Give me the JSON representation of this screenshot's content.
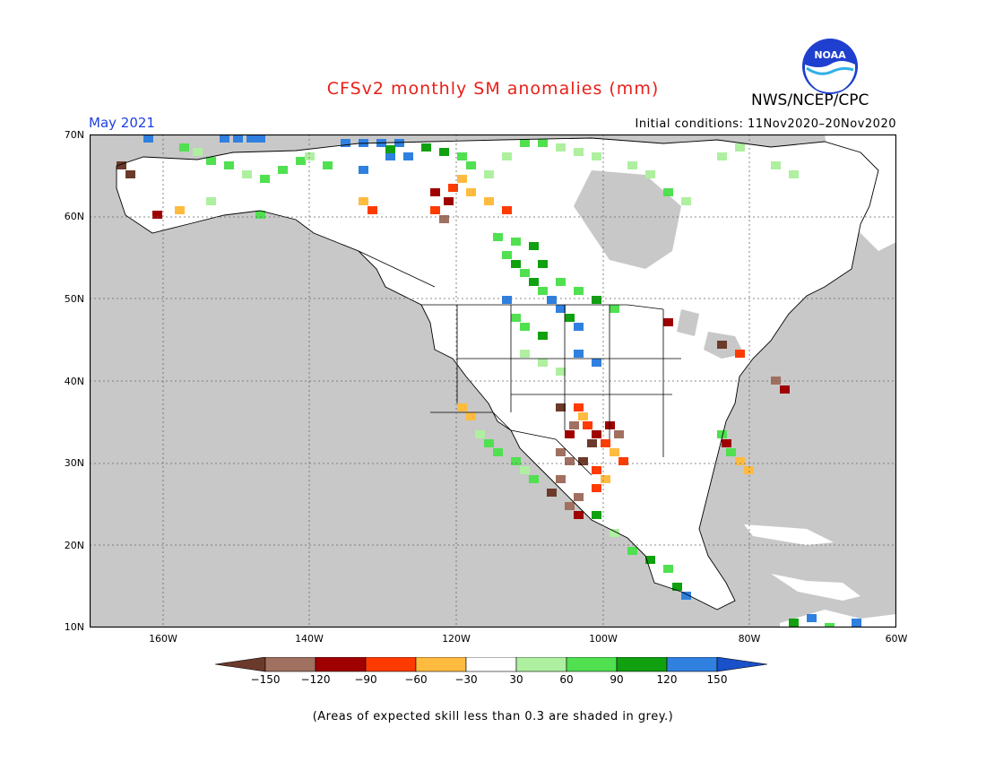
{
  "header": {
    "title": "CFSv2 monthly SM anomalies (mm)",
    "valid_month": "May 2021",
    "initial_conditions": "Initial conditions: 11Nov2020–20Nov2020",
    "agency": "NWS/NCEP/CPC",
    "logo_text": "NOAA",
    "logo_icon": "noaa-logo-icon"
  },
  "map": {
    "lat_labels": [
      "70N",
      "60N",
      "50N",
      "40N",
      "30N",
      "20N",
      "10N"
    ],
    "lon_labels": [
      "160W",
      "140W",
      "120W",
      "100W",
      "80W",
      "60W"
    ],
    "lat_range": [
      10,
      70
    ],
    "lon_range": [
      -170,
      -60
    ],
    "grid": true,
    "background_color": "#c8c8c8",
    "land_color": "#ffffff"
  },
  "colorbar": {
    "tick_labels": [
      "−150",
      "−120",
      "−90",
      "−60",
      "−30",
      "30",
      "60",
      "90",
      "120",
      "150"
    ],
    "colors": [
      "#6b3a2a",
      "#a07060",
      "#a00000",
      "#ff3b00",
      "#ffbb40",
      "#ffffff",
      "#aef0a0",
      "#50e050",
      "#10a010",
      "#3080e0",
      "#1a50c8"
    ]
  },
  "footnote": "(Areas of expected skill less than 0.3 are shaded in grey.)"
}
